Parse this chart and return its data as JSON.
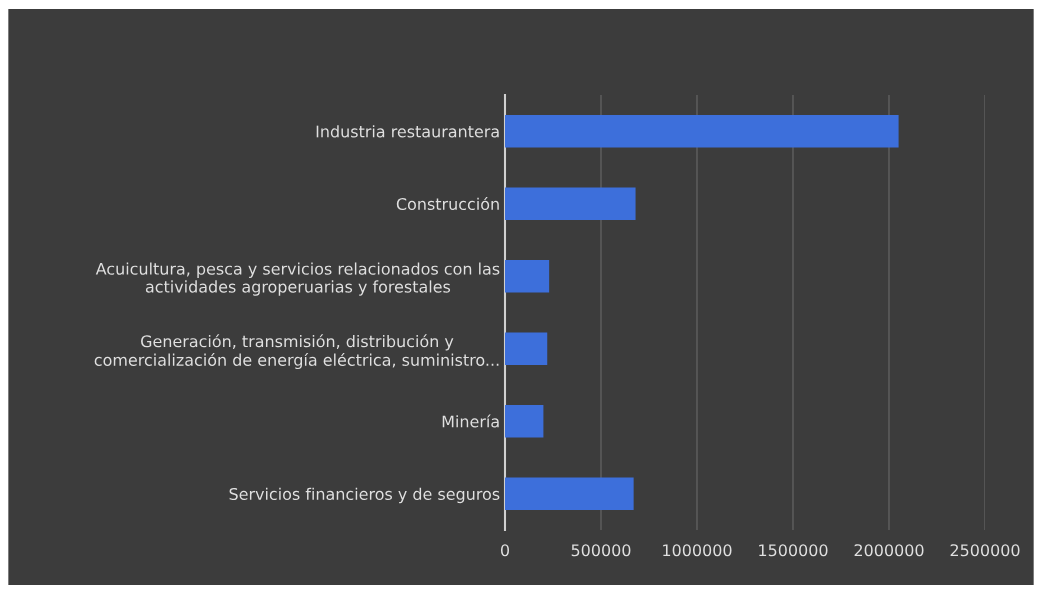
{
  "chart_data": {
    "type": "bar",
    "orientation": "horizontal",
    "categories": [
      "Industria restaurantera",
      "Construcción",
      "Acuicultura, pesca y servicios relacionados con las\nactividades agroperuarias y forestales",
      "Generación, transmisión, distribución y\ncomercialización de energía eléctrica, suministro...",
      "Minería",
      "Servicios financieros y de seguros"
    ],
    "values": [
      2050000,
      680000,
      230000,
      220000,
      200000,
      670000
    ],
    "color": "#3d6fdb",
    "xlim": [
      0,
      2500000
    ],
    "xticks": [
      0,
      500000,
      1000000,
      1500000,
      2000000,
      2500000
    ],
    "grid": "x"
  }
}
